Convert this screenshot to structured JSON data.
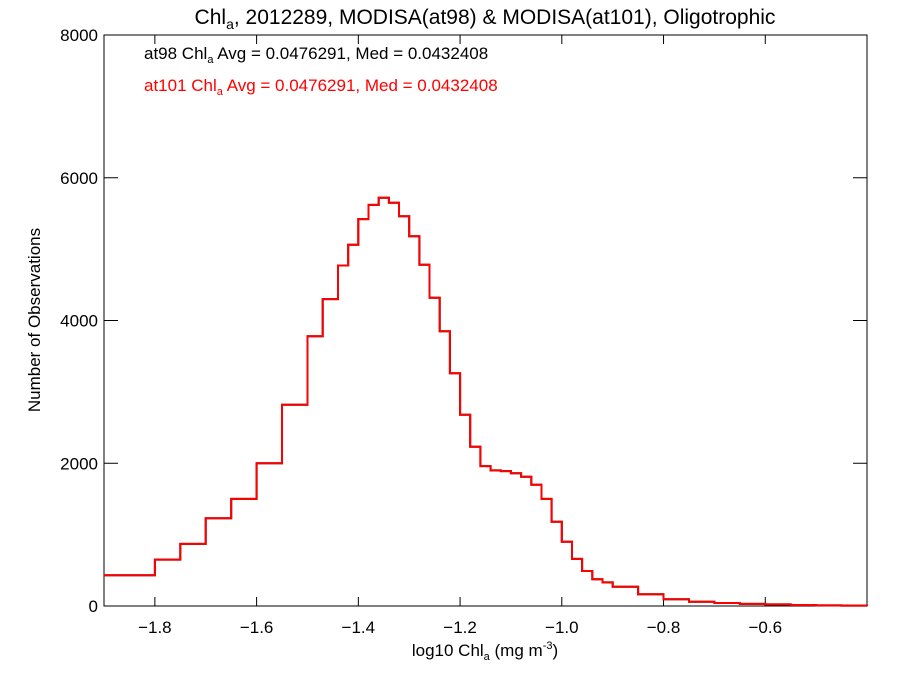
{
  "chart_data": {
    "type": "line",
    "step": true,
    "title": {
      "prefix": "Chl",
      "sub": "a",
      "rest": ", 2012289, MODISA(at98) & MODISA(at101), Oligotrophic"
    },
    "xlabel": {
      "prefix": "log10 Chl",
      "sub": "a",
      "mid": " (mg m",
      "sup": "-3",
      "end": ")"
    },
    "ylabel": "Number of Observations",
    "xlim": [
      -1.9,
      -0.4
    ],
    "ylim": [
      0,
      8000
    ],
    "xticks": [
      -1.8,
      -1.6,
      -1.4,
      -1.2,
      -1.0,
      -0.8,
      -0.6
    ],
    "xtick_labels": [
      "−1.8",
      "−1.6",
      "−1.4",
      "−1.2",
      "−1.0",
      "−0.8",
      "−0.6"
    ],
    "yticks": [
      0,
      2000,
      4000,
      6000,
      8000
    ],
    "ytick_labels": [
      "0",
      "2000",
      "4000",
      "6000",
      "8000"
    ],
    "grid": false,
    "annotations": [
      {
        "series": 0,
        "prefix": "at98 Chl",
        "sub": "a",
        "rest": " Avg = 0.0476291, Med = 0.0432408",
        "color": "#000000"
      },
      {
        "series": 1,
        "prefix": "at101 Chl",
        "sub": "a",
        "rest": " Avg = 0.0476291, Med = 0.0432408",
        "color": "#ff0000"
      }
    ],
    "series": [
      {
        "color": "#000000"
      },
      {
        "color": "#ff0000"
      }
    ],
    "x": [
      -1.9,
      -1.8,
      -1.75,
      -1.7,
      -1.65,
      -1.6,
      -1.55,
      -1.5,
      -1.47,
      -1.44,
      -1.42,
      -1.4,
      -1.38,
      -1.36,
      -1.34,
      -1.32,
      -1.3,
      -1.28,
      -1.26,
      -1.24,
      -1.22,
      -1.2,
      -1.18,
      -1.16,
      -1.14,
      -1.12,
      -1.1,
      -1.08,
      -1.06,
      -1.04,
      -1.02,
      -1.0,
      -0.98,
      -0.96,
      -0.94,
      -0.92,
      -0.9,
      -0.85,
      -0.8,
      -0.75,
      -0.7,
      -0.65,
      -0.6,
      -0.55,
      -0.5,
      -0.45,
      -0.4
    ],
    "y": [
      430,
      650,
      870,
      1230,
      1500,
      2000,
      2820,
      3780,
      4300,
      4770,
      5060,
      5420,
      5620,
      5720,
      5650,
      5460,
      5180,
      4780,
      4320,
      3850,
      3260,
      2680,
      2230,
      1960,
      1900,
      1890,
      1860,
      1810,
      1700,
      1500,
      1180,
      900,
      660,
      490,
      375,
      330,
      270,
      165,
      95,
      60,
      42,
      30,
      22,
      14,
      9,
      6,
      4
    ]
  }
}
